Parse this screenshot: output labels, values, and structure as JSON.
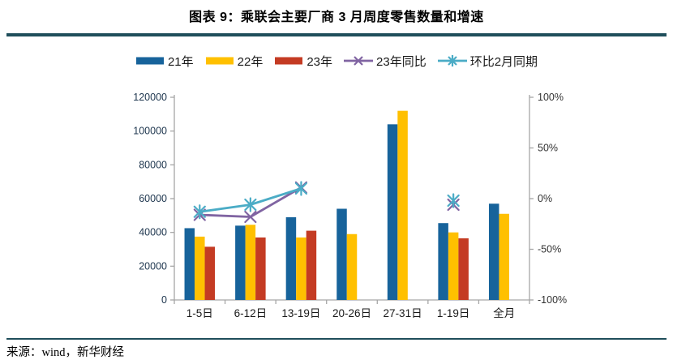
{
  "title": "图表 9：乘联会主要厂商 3 月周度零售数量和增速",
  "source": "来源：wind，新华财经",
  "colors": {
    "divider": "#1F4E5B",
    "axis_line": "#A6A6A6",
    "left_tick_text": "#203850",
    "right_tick_text": "#333333",
    "category_text": "#1a1a1a"
  },
  "chart_data": {
    "type": "bar",
    "subtype": "grouped bars + line overlay (dual axis)",
    "categories": [
      "1-5日",
      "6-12日",
      "13-19日",
      "20-26日",
      "27-31日",
      "1-19日",
      "全月"
    ],
    "series": [
      {
        "name": "21年",
        "type": "bar",
        "axis": "left",
        "color": "#17639B",
        "values": [
          42500,
          44000,
          49000,
          54000,
          104000,
          45500,
          57000
        ]
      },
      {
        "name": "22年",
        "type": "bar",
        "axis": "left",
        "color": "#FFC000",
        "values": [
          37500,
          44500,
          37000,
          39000,
          112000,
          40000,
          51000
        ]
      },
      {
        "name": "23年",
        "type": "bar",
        "axis": "left",
        "color": "#C43B23",
        "values": [
          31500,
          37000,
          41000,
          null,
          null,
          36500,
          null
        ]
      },
      {
        "name": "23年同比",
        "type": "line",
        "marker": "x",
        "axis": "right",
        "color": "#8064A2",
        "values": [
          -16,
          -18,
          11,
          null,
          null,
          -6,
          null
        ]
      },
      {
        "name": "环比2月同期",
        "type": "line",
        "marker": "asterisk",
        "axis": "right",
        "color": "#4BACC6",
        "values": [
          -13,
          -6,
          10,
          null,
          null,
          -2,
          null
        ]
      }
    ],
    "left_axis": {
      "min": 0,
      "max": 120000,
      "step": 20000,
      "tick_labels": [
        "0",
        "20000",
        "40000",
        "60000",
        "80000",
        "100000",
        "120000"
      ]
    },
    "right_axis": {
      "min": -100,
      "max": 100,
      "step": 50,
      "tick_labels": [
        "-100%",
        "-50%",
        "0%",
        "50%",
        "100%"
      ]
    },
    "grid": false,
    "legend_position": "top"
  }
}
